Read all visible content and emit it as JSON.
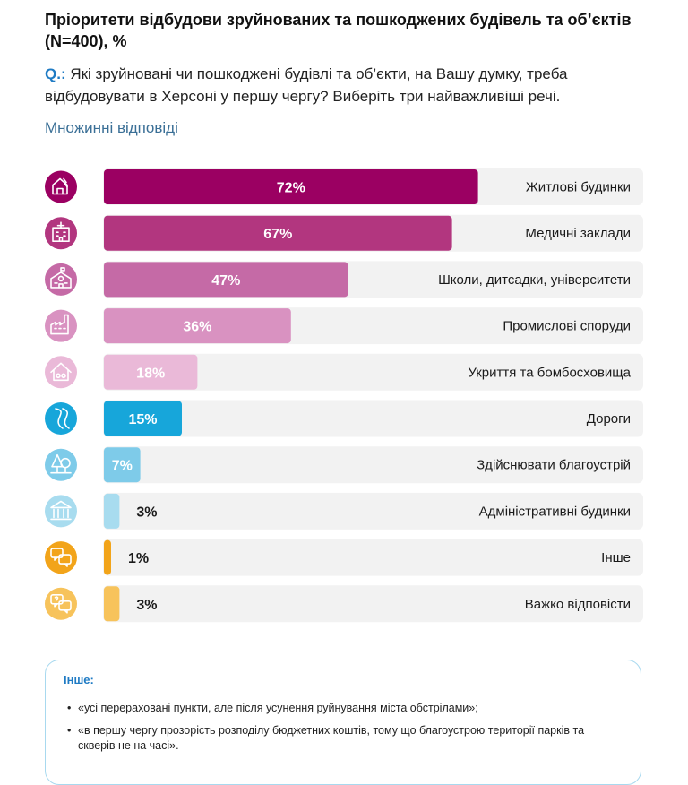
{
  "title": "Пріоритети відбудови зруйнованих та пошкоджених будівель та об’єктів  (N=400), %",
  "question_prefix": "Q.:",
  "question_text": " Які зруйновані чи пошкоджені будівлі та об’єкти, на Вашу думку, треба відбудовувати в Херсоні у першу чергу? Виберіть три найважливіші речі.",
  "subtitle": "Множинні відповіді",
  "chart_data": {
    "type": "bar",
    "orientation": "horizontal",
    "categories": [
      "Житлові будинки",
      "Медичні заклади",
      "Школи, дитсадки, університети",
      "Промислові споруди",
      "Укриття та бомбосховища",
      "Дороги",
      "Здійснювати благоустрій",
      "Адміністративні будинки",
      "Інше",
      "Важко відповісти"
    ],
    "values": [
      72,
      67,
      47,
      36,
      18,
      15,
      7,
      3,
      1,
      3
    ],
    "value_labels": [
      "72%",
      "67%",
      "47%",
      "36%",
      "18%",
      "15%",
      "7%",
      "3%",
      "1%",
      "3%"
    ],
    "bar_colors": [
      "#9b0062",
      "#b2367f",
      "#c56aa6",
      "#d992c1",
      "#eab9d8",
      "#17a6da",
      "#7ecbe9",
      "#a8dcef",
      "#f2a41a",
      "#f7c35b"
    ],
    "icons": [
      "house-damage-icon",
      "hospital-icon",
      "school-icon",
      "factory-icon",
      "shelter-icon",
      "road-icon",
      "tree-icon",
      "government-building-icon",
      "chat-bubbles-icon",
      "question-bubbles-icon"
    ],
    "xlim": [
      0,
      100
    ],
    "grid": false,
    "legend": "none"
  },
  "other_box": {
    "title": "Інше:",
    "items": [
      "«усі перераховані пункти, але після усунення руйнування міста обстрілами»;",
      "«в першу чергу прозорість розподілу бюджетних коштів, тому що благоустрою території парків та скверів не на часі»."
    ]
  }
}
